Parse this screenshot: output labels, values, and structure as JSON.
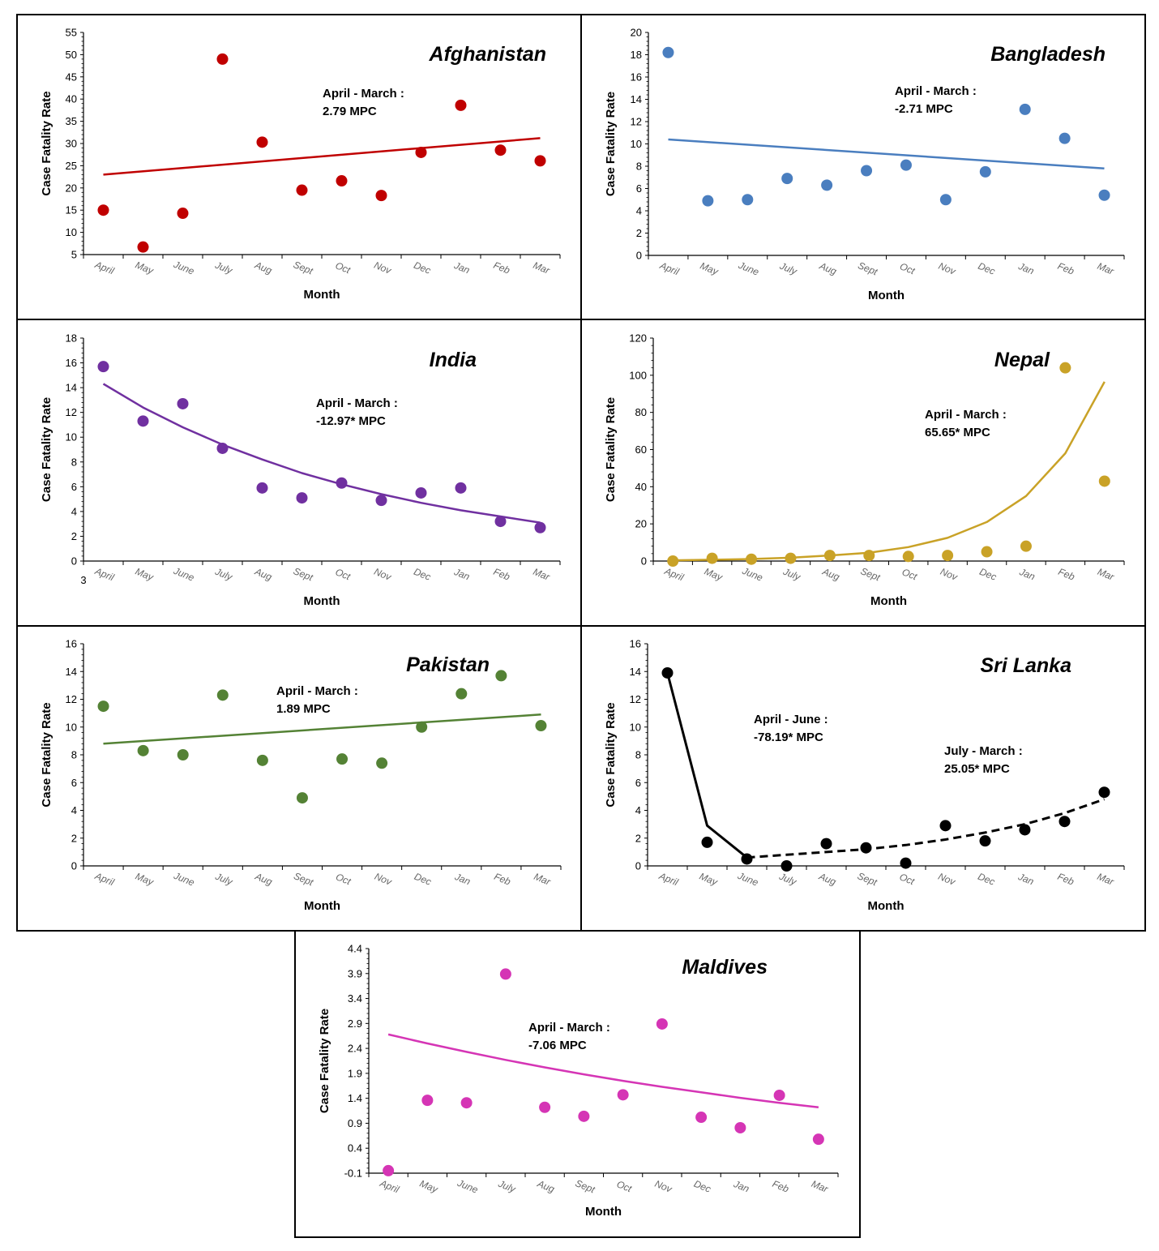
{
  "chart_data": [
    {
      "id": "afghanistan",
      "type": "scatter",
      "title": "Afghanistan",
      "annotation": [
        "April - March :",
        "2.79 MPC"
      ],
      "ylabel": "Case Fatality Rate",
      "xlabel": "Month",
      "categories": [
        "April",
        "May",
        "June",
        "July",
        "Aug",
        "Sept",
        "Oct",
        "Nov",
        "Dec",
        "Jan",
        "Feb",
        "Mar"
      ],
      "yticks": [
        "5",
        "10",
        "15",
        "20",
        "25",
        "30",
        "35",
        "40",
        "45",
        "50",
        "55"
      ],
      "ylim": [
        5,
        55
      ],
      "color": "#c00000",
      "values": [
        15,
        6.7,
        14.3,
        49,
        30.3,
        19.5,
        21.6,
        18.3,
        28,
        38.6,
        28.5,
        26.1
      ],
      "trend": {
        "style": "solid",
        "points": [
          [
            0,
            23
          ],
          [
            11,
            31.2
          ]
        ]
      }
    },
    {
      "id": "bangladesh",
      "type": "scatter",
      "title": "Bangladesh",
      "annotation": [
        "April - March :",
        "-2.71 MPC"
      ],
      "ylabel": "Case Fatality Rate",
      "xlabel": "Month",
      "categories": [
        "April",
        "May",
        "June",
        "July",
        "Aug",
        "Sept",
        "Oct",
        "Nov",
        "Dec",
        "Jan",
        "Feb",
        "Mar"
      ],
      "yticks": [
        "0",
        "2",
        "4",
        "6",
        "8",
        "10",
        "12",
        "14",
        "16",
        "18",
        "20"
      ],
      "ylim": [
        0,
        20
      ],
      "color": "#4a7ebf",
      "values": [
        18.2,
        4.9,
        5,
        6.9,
        6.3,
        7.6,
        8.1,
        5,
        7.5,
        13.1,
        10.5,
        5.4
      ],
      "trend": {
        "style": "solid",
        "points": [
          [
            0,
            10.4
          ],
          [
            11,
            7.8
          ]
        ]
      }
    },
    {
      "id": "india",
      "type": "scatter",
      "title": "India",
      "annotation": [
        "April - March :",
        "-12.97* MPC"
      ],
      "ylabel": "Case Fatality Rate",
      "xlabel": "Month",
      "extra_label": "3",
      "categories": [
        "April",
        "May",
        "June",
        "July",
        "Aug",
        "Sept",
        "Oct",
        "Nov",
        "Dec",
        "Jan",
        "Feb",
        "Mar"
      ],
      "yticks": [
        "0",
        "2",
        "4",
        "6",
        "8",
        "10",
        "12",
        "14",
        "16",
        "18"
      ],
      "ylim": [
        0,
        18
      ],
      "color": "#7030a0",
      "values": [
        15.7,
        11.3,
        12.7,
        9.1,
        5.9,
        5.1,
        6.3,
        4.9,
        5.5,
        5.9,
        3.2,
        2.7
      ],
      "trend": {
        "style": "solid",
        "points": [
          [
            0,
            14.3
          ],
          [
            1,
            12.4
          ],
          [
            2,
            10.8
          ],
          [
            3,
            9.4
          ],
          [
            4,
            8.2
          ],
          [
            5,
            7.1
          ],
          [
            6,
            6.2
          ],
          [
            7,
            5.4
          ],
          [
            8,
            4.7
          ],
          [
            9,
            4.1
          ],
          [
            10,
            3.6
          ],
          [
            11,
            3.1
          ]
        ]
      }
    },
    {
      "id": "nepal",
      "type": "scatter",
      "title": "Nepal",
      "annotation": [
        "April - March :",
        "65.65* MPC"
      ],
      "ylabel": "Case Fatality Rate",
      "xlabel": "Month",
      "categories": [
        "April",
        "May",
        "June",
        "July",
        "Aug",
        "Sept",
        "Oct",
        "Nov",
        "Dec",
        "Jan",
        "Feb",
        "Mar"
      ],
      "yticks": [
        "0",
        "20",
        "40",
        "60",
        "80",
        "100",
        "120"
      ],
      "ylim": [
        0,
        120
      ],
      "color": "#c9a227",
      "values": [
        0,
        1.5,
        1,
        1.5,
        3,
        3,
        2.5,
        3,
        5,
        8,
        104,
        43
      ],
      "trend": {
        "style": "solid",
        "points": [
          [
            0,
            0.4
          ],
          [
            1,
            0.7
          ],
          [
            2,
            1.1
          ],
          [
            3,
            1.8
          ],
          [
            4,
            3
          ],
          [
            5,
            4.5
          ],
          [
            6,
            7.5
          ],
          [
            7,
            12.5
          ],
          [
            8,
            21
          ],
          [
            9,
            35
          ],
          [
            10,
            58
          ],
          [
            11,
            96.5
          ]
        ]
      }
    },
    {
      "id": "pakistan",
      "type": "scatter",
      "title": "Pakistan",
      "annotation": [
        "April - March :",
        "1.89 MPC"
      ],
      "ylabel": "Case Fatality Rate",
      "xlabel": "Month",
      "categories": [
        "April",
        "May",
        "June",
        "July",
        "Aug",
        "Sept",
        "Oct",
        "Nov",
        "Dec",
        "Jan",
        "Feb",
        "Mar"
      ],
      "yticks": [
        "0",
        "2",
        "4",
        "6",
        "8",
        "10",
        "12",
        "14",
        "16"
      ],
      "ylim": [
        0,
        16
      ],
      "color": "#548235",
      "values": [
        11.5,
        8.3,
        8,
        12.3,
        7.6,
        4.9,
        7.7,
        7.4,
        10,
        12.4,
        13.7,
        10.1
      ],
      "trend": {
        "style": "solid",
        "points": [
          [
            0,
            8.8
          ],
          [
            11,
            10.9
          ]
        ]
      }
    },
    {
      "id": "srilanka",
      "type": "scatter",
      "title": "Sri Lanka",
      "annotation": [
        "April - June :",
        "-78.19* MPC"
      ],
      "annotation2": [
        "July - March :",
        "25.05* MPC"
      ],
      "ylabel": "Case Fatality Rate",
      "xlabel": "Month",
      "categories": [
        "April",
        "May",
        "June",
        "July",
        "Aug",
        "Sept",
        "Oct",
        "Nov",
        "Dec",
        "Jan",
        "Feb",
        "Mar"
      ],
      "yticks": [
        "0",
        "2",
        "4",
        "6",
        "8",
        "10",
        "12",
        "14",
        "16"
      ],
      "ylim": [
        0,
        16
      ],
      "color": "#000000",
      "values": [
        13.9,
        1.7,
        0.5,
        0,
        1.6,
        1.3,
        0.2,
        2.9,
        1.8,
        2.6,
        3.2,
        5.3
      ],
      "trend": {
        "style": "solid",
        "points": [
          [
            0,
            13.9
          ],
          [
            1,
            2.9
          ],
          [
            2,
            0.6
          ]
        ]
      },
      "trend2": {
        "style": "dashed",
        "points": [
          [
            2,
            0.6
          ],
          [
            3,
            0.8
          ],
          [
            4,
            1
          ],
          [
            5,
            1.2
          ],
          [
            6,
            1.5
          ],
          [
            7,
            1.9
          ],
          [
            8,
            2.4
          ],
          [
            9,
            3
          ],
          [
            10,
            3.8
          ],
          [
            11,
            4.8
          ]
        ]
      }
    },
    {
      "id": "maldives",
      "type": "scatter",
      "title": "Maldives",
      "annotation": [
        "April - March :",
        "-7.06 MPC"
      ],
      "ylabel": "Case Fatality Rate",
      "xlabel": "Month",
      "categories": [
        "April",
        "May",
        "June",
        "July",
        "Aug",
        "Sept",
        "Oct",
        "Nov",
        "Dec",
        "Jan",
        "Feb",
        "Mar"
      ],
      "yticks": [
        "-0.1",
        "0.4",
        "0.9",
        "1.4",
        "1.9",
        "2.4",
        "2.9",
        "3.4",
        "3.9",
        "4.4"
      ],
      "ylim": [
        -0.1,
        4.4
      ],
      "color": "#d535b5",
      "values": [
        -0.05,
        1.36,
        1.31,
        3.89,
        1.22,
        1.04,
        1.47,
        2.89,
        1.02,
        0.81,
        1.46,
        0.58
      ],
      "trend": {
        "style": "solid",
        "points": [
          [
            0,
            2.68
          ],
          [
            1,
            2.5
          ],
          [
            2,
            2.33
          ],
          [
            3,
            2.17
          ],
          [
            4,
            2.02
          ],
          [
            5,
            1.88
          ],
          [
            6,
            1.75
          ],
          [
            7,
            1.63
          ],
          [
            8,
            1.52
          ],
          [
            9,
            1.41
          ],
          [
            10,
            1.31
          ],
          [
            11,
            1.22
          ]
        ]
      }
    }
  ]
}
